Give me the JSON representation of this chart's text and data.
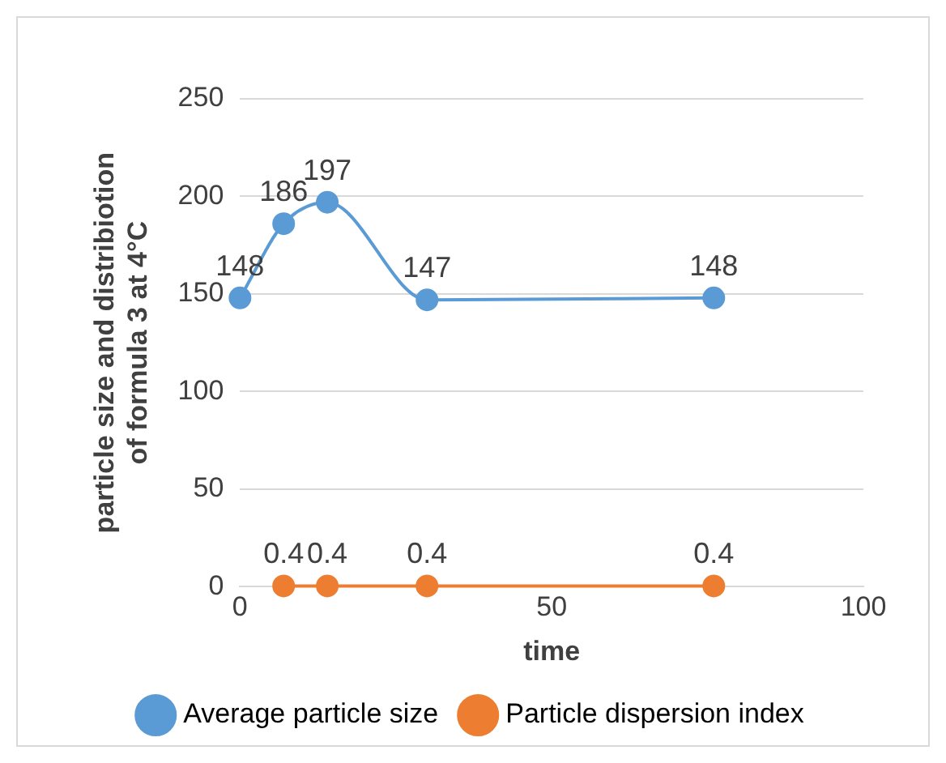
{
  "chart_data": {
    "type": "line",
    "xlabel": "time",
    "ylabel": "particle size and distribiotion of formula 3 at 4°C",
    "series": [
      {
        "name": "Average particle size",
        "color": "#5b9bd5",
        "x": [
          0,
          7,
          14,
          30,
          76
        ],
        "values": [
          148,
          186,
          197,
          147,
          148
        ]
      },
      {
        "name": "Particle dispersion index",
        "color": "#ed7d31",
        "x": [
          7,
          14,
          30,
          76
        ],
        "values": [
          0.4,
          0.4,
          0.4,
          0.4
        ]
      }
    ],
    "xlim": [
      0,
      100
    ],
    "xticks": [
      0,
      50,
      100
    ],
    "ylim": [
      0,
      250
    ],
    "yticks": [
      0,
      50,
      100,
      150,
      200,
      250
    ],
    "grid": "y",
    "legend": "bottom",
    "marker": "circle",
    "line_style": "solid",
    "data_labels": true
  }
}
